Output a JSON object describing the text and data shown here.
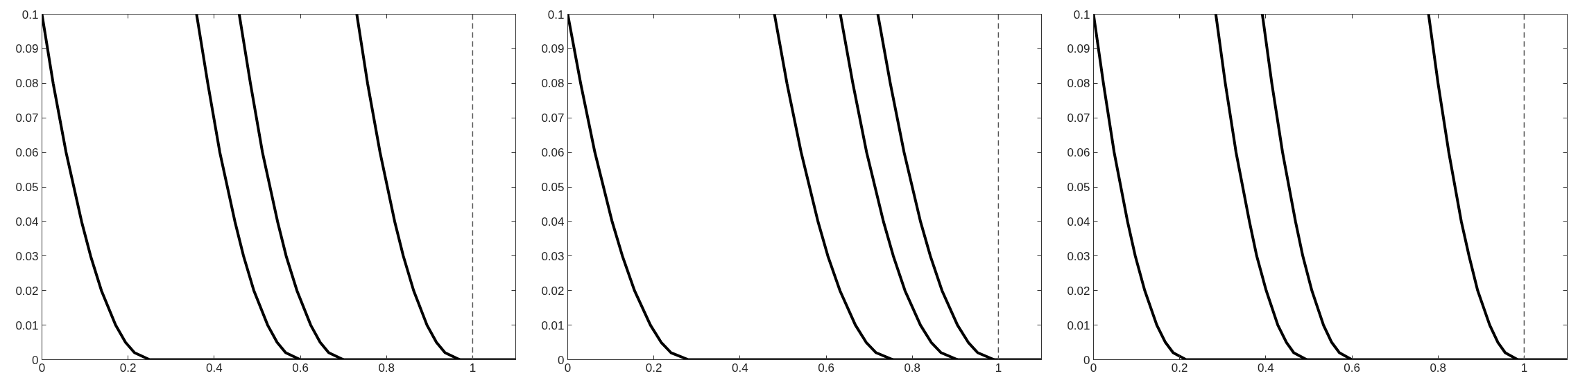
{
  "chart_data": [
    {
      "type": "line",
      "xlim": [
        0,
        1.1
      ],
      "ylim": [
        0,
        0.1
      ],
      "xticks": [
        0,
        0.2,
        0.4,
        0.6,
        0.8,
        1
      ],
      "yticks": [
        0,
        0.01,
        0.02,
        0.03,
        0.04,
        0.05,
        0.06,
        0.07,
        0.08,
        0.09,
        0.1
      ],
      "grid": false,
      "marker": "none",
      "line_style": "solid",
      "ref_lines": [
        {
          "axis": "x",
          "value": 1,
          "color": "#555555",
          "line_style": "dashed"
        }
      ],
      "series": [
        {
          "color": "#000000",
          "x": [
            0,
            0.026,
            0.056,
            0.092,
            0.113,
            0.138,
            0.171,
            0.194,
            0.215,
            0.25,
            1.1
          ],
          "values": [
            0.1,
            0.08,
            0.06,
            0.04,
            0.03,
            0.02,
            0.01,
            0.005,
            0.002,
            0,
            0
          ]
        },
        {
          "color": "#000000",
          "x": [
            0.359,
            0.385,
            0.413,
            0.448,
            0.468,
            0.492,
            0.524,
            0.546,
            0.566,
            0.6
          ],
          "values": [
            0.1,
            0.08,
            0.06,
            0.04,
            0.03,
            0.02,
            0.01,
            0.005,
            0.002,
            0
          ]
        },
        {
          "color": "#000000",
          "x": [
            0.458,
            0.484,
            0.512,
            0.547,
            0.567,
            0.592,
            0.624,
            0.646,
            0.666,
            0.7
          ],
          "values": [
            0.1,
            0.08,
            0.06,
            0.04,
            0.03,
            0.02,
            0.01,
            0.005,
            0.002,
            0
          ]
        },
        {
          "color": "#000000",
          "x": [
            0.731,
            0.756,
            0.785,
            0.819,
            0.839,
            0.863,
            0.894,
            0.916,
            0.936,
            0.97
          ],
          "values": [
            0.1,
            0.08,
            0.06,
            0.04,
            0.03,
            0.02,
            0.01,
            0.005,
            0.002,
            0
          ]
        }
      ]
    },
    {
      "type": "line",
      "xlim": [
        0,
        1.1
      ],
      "ylim": [
        0,
        0.1
      ],
      "xticks": [
        0,
        0.2,
        0.4,
        0.6,
        0.8,
        1
      ],
      "yticks": [
        0,
        0.01,
        0.02,
        0.03,
        0.04,
        0.05,
        0.06,
        0.07,
        0.08,
        0.09,
        0.1
      ],
      "grid": false,
      "marker": "none",
      "line_style": "solid",
      "ref_lines": [
        {
          "axis": "x",
          "value": 1,
          "color": "#555555",
          "line_style": "dashed"
        }
      ],
      "series": [
        {
          "color": "#000000",
          "x": [
            0,
            0.03,
            0.063,
            0.103,
            0.127,
            0.155,
            0.192,
            0.217,
            0.24,
            0.28,
            1.1
          ],
          "values": [
            0.1,
            0.08,
            0.06,
            0.04,
            0.03,
            0.02,
            0.01,
            0.005,
            0.002,
            0,
            0
          ]
        },
        {
          "color": "#000000",
          "x": [
            0.48,
            0.509,
            0.542,
            0.581,
            0.604,
            0.632,
            0.668,
            0.693,
            0.716,
            0.755
          ],
          "values": [
            0.1,
            0.08,
            0.06,
            0.04,
            0.03,
            0.02,
            0.01,
            0.005,
            0.002,
            0
          ]
        },
        {
          "color": "#000000",
          "x": [
            0.633,
            0.662,
            0.694,
            0.733,
            0.756,
            0.783,
            0.819,
            0.844,
            0.867,
            0.905
          ],
          "values": [
            0.1,
            0.08,
            0.06,
            0.04,
            0.03,
            0.02,
            0.01,
            0.005,
            0.002,
            0
          ]
        },
        {
          "color": "#000000",
          "x": [
            0.72,
            0.749,
            0.781,
            0.819,
            0.842,
            0.869,
            0.905,
            0.93,
            0.952,
            0.99
          ],
          "values": [
            0.1,
            0.08,
            0.06,
            0.04,
            0.03,
            0.02,
            0.01,
            0.005,
            0.002,
            0
          ]
        }
      ]
    },
    {
      "type": "line",
      "xlim": [
        0,
        1.1
      ],
      "ylim": [
        0,
        0.1
      ],
      "xticks": [
        0,
        0.2,
        0.4,
        0.6,
        0.8,
        1
      ],
      "yticks": [
        0,
        0.01,
        0.02,
        0.03,
        0.04,
        0.05,
        0.06,
        0.07,
        0.08,
        0.09,
        0.1
      ],
      "grid": false,
      "marker": "none",
      "line_style": "solid",
      "ref_lines": [
        {
          "axis": "x",
          "value": 1,
          "color": "#555555",
          "line_style": "dashed"
        }
      ],
      "series": [
        {
          "color": "#000000",
          "x": [
            0,
            0.023,
            0.048,
            0.079,
            0.097,
            0.119,
            0.147,
            0.167,
            0.185,
            0.215,
            1.1
          ],
          "values": [
            0.1,
            0.08,
            0.06,
            0.04,
            0.03,
            0.02,
            0.01,
            0.005,
            0.002,
            0,
            0
          ]
        },
        {
          "color": "#000000",
          "x": [
            0.284,
            0.306,
            0.331,
            0.362,
            0.379,
            0.401,
            0.428,
            0.448,
            0.465,
            0.495
          ],
          "values": [
            0.1,
            0.08,
            0.06,
            0.04,
            0.03,
            0.02,
            0.01,
            0.005,
            0.002,
            0
          ]
        },
        {
          "color": "#000000",
          "x": [
            0.392,
            0.414,
            0.439,
            0.469,
            0.486,
            0.507,
            0.534,
            0.553,
            0.571,
            0.6
          ],
          "values": [
            0.1,
            0.08,
            0.06,
            0.04,
            0.03,
            0.02,
            0.01,
            0.005,
            0.002,
            0
          ]
        },
        {
          "color": "#000000",
          "x": [
            0.778,
            0.8,
            0.825,
            0.854,
            0.872,
            0.892,
            0.92,
            0.939,
            0.956,
            0.985
          ],
          "values": [
            0.1,
            0.08,
            0.06,
            0.04,
            0.03,
            0.02,
            0.01,
            0.005,
            0.002,
            0
          ]
        }
      ]
    }
  ]
}
